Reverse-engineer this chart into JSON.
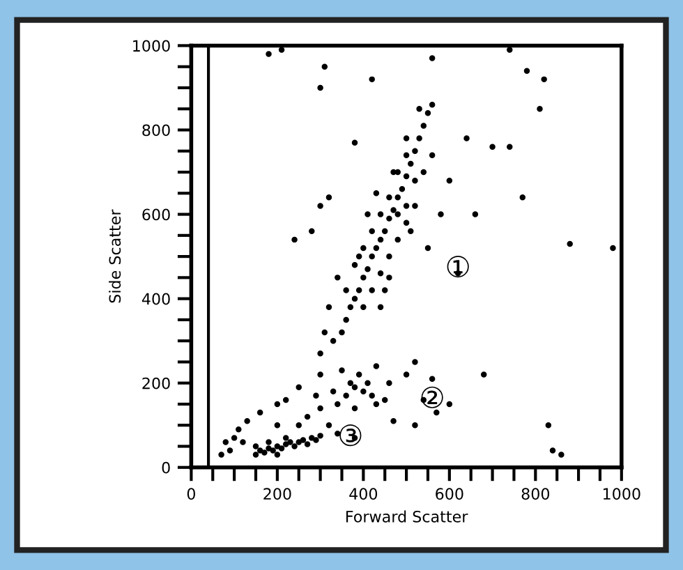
{
  "chart_data": {
    "type": "scatter",
    "xlabel": "Forward Scatter",
    "ylabel": "Side Scatter",
    "xlim": [
      0,
      1000
    ],
    "ylim": [
      0,
      1000
    ],
    "xticks": [
      0,
      {
        "value": 50,
        "label": null
      },
      {
        "value": 100,
        "label": null
      },
      {
        "value": 150,
        "label": null
      },
      200,
      {
        "value": 250,
        "label": null
      },
      {
        "value": 300,
        "label": null
      },
      {
        "value": 350,
        "label": null
      },
      400,
      {
        "value": 450,
        "label": null
      },
      {
        "value": 500,
        "label": null
      },
      {
        "value": 550,
        "label": null
      },
      600,
      {
        "value": 650,
        "label": null
      },
      {
        "value": 700,
        "label": null
      },
      {
        "value": 750,
        "label": null
      },
      800,
      {
        "value": 850,
        "label": null
      },
      {
        "value": 900,
        "label": null
      },
      {
        "value": 950,
        "label": null
      },
      1000
    ],
    "yticks": [
      0,
      {
        "value": 50,
        "label": null
      },
      {
        "value": 100,
        "label": null
      },
      {
        "value": 150,
        "label": null
      },
      200,
      {
        "value": 250,
        "label": null
      },
      {
        "value": 300,
        "label": null
      },
      {
        "value": 350,
        "label": null
      },
      400,
      {
        "value": 450,
        "label": null
      },
      {
        "value": 500,
        "label": null
      },
      {
        "value": 550,
        "label": null
      },
      600,
      {
        "value": 650,
        "label": null
      },
      {
        "value": 700,
        "label": null
      },
      {
        "value": 750,
        "label": null
      },
      800,
      {
        "value": 850,
        "label": null
      },
      {
        "value": 900,
        "label": null
      },
      {
        "value": 950,
        "label": null
      },
      1000
    ],
    "grid": false,
    "marker": "circle",
    "ref_lines": [
      {
        "axis": "x",
        "value": 40,
        "color": "#000000"
      }
    ],
    "annotations": [
      {
        "text": "①",
        "x": 620,
        "y": 470
      },
      {
        "text": "②",
        "x": 560,
        "y": 160
      },
      {
        "text": "③",
        "x": 370,
        "y": 70
      }
    ],
    "series": [
      {
        "color": "#000000",
        "x": [
          350,
          360,
          370,
          380,
          390,
          400,
          410,
          420,
          430,
          440,
          450,
          460,
          470,
          480,
          490,
          500,
          510,
          520,
          530,
          540,
          550,
          560,
          380,
          400,
          420,
          440,
          460,
          480,
          500,
          420,
          440,
          460,
          480,
          500,
          520,
          520,
          540,
          440,
          400,
          390,
          410,
          430,
          470,
          500,
          530,
          460,
          450,
          480,
          500,
          510,
          360,
          340,
          320,
          310,
          300,
          280,
          240,
          320,
          550,
          580,
          600,
          560,
          620,
          660,
          380,
          330,
          300,
          180,
          210,
          310,
          420,
          560,
          300,
          740,
          780,
          820,
          810,
          700,
          740,
          770,
          880,
          980,
          640,
          830,
          840,
          860,
          680,
          340,
          360,
          380,
          390,
          400,
          410,
          420,
          430,
          450,
          380,
          370,
          350,
          330,
          460,
          500,
          520,
          540,
          570,
          560,
          600,
          520,
          470,
          430,
          300,
          290,
          250,
          220,
          200,
          150,
          160,
          170,
          180,
          190,
          200,
          210,
          220,
          230,
          240,
          250,
          260,
          270,
          280,
          290,
          300,
          200,
          180,
          220,
          150,
          70,
          80,
          100,
          110,
          120,
          130,
          90,
          250,
          270,
          300,
          200,
          160,
          340,
          380,
          320
        ],
        "values": [
          320,
          350,
          380,
          400,
          420,
          450,
          470,
          500,
          520,
          540,
          560,
          590,
          610,
          640,
          660,
          690,
          720,
          750,
          780,
          810,
          840,
          860,
          480,
          520,
          560,
          600,
          640,
          700,
          740,
          420,
          460,
          500,
          540,
          580,
          620,
          680,
          700,
          380,
          380,
          500,
          600,
          650,
          700,
          780,
          850,
          450,
          420,
          600,
          620,
          560,
          420,
          450,
          380,
          320,
          620,
          560,
          540,
          640,
          520,
          600,
          680,
          740,
          460,
          600,
          770,
          300,
          270,
          980,
          990,
          950,
          920,
          970,
          900,
          990,
          940,
          920,
          850,
          760,
          760,
          640,
          530,
          520,
          780,
          100,
          40,
          30,
          220,
          150,
          170,
          190,
          220,
          180,
          200,
          170,
          150,
          160,
          140,
          200,
          230,
          180,
          200,
          220,
          250,
          160,
          130,
          210,
          150,
          100,
          110,
          240,
          220,
          170,
          190,
          160,
          150,
          30,
          40,
          35,
          45,
          40,
          50,
          45,
          55,
          60,
          50,
          60,
          65,
          55,
          70,
          65,
          75,
          30,
          60,
          70,
          50,
          30,
          60,
          70,
          90,
          60,
          110,
          40,
          100,
          120,
          140,
          100,
          130,
          80,
          70,
          100
        ]
      }
    ]
  }
}
